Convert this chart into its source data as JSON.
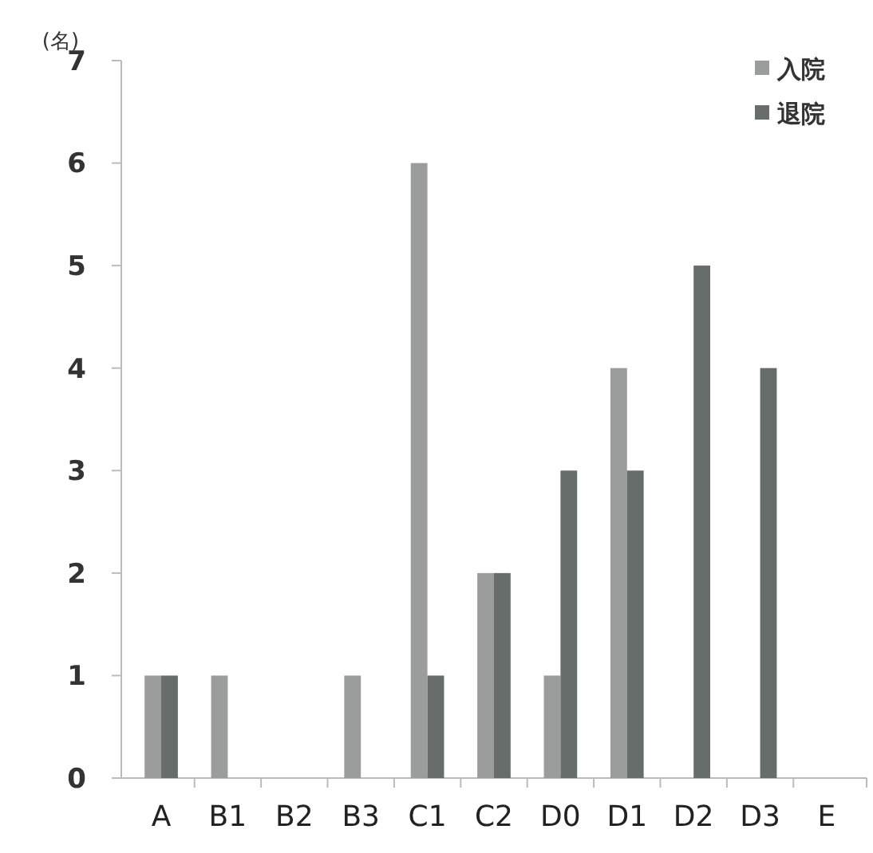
{
  "chart_data": {
    "type": "bar",
    "ylabel": "(名)",
    "categories": [
      "A",
      "B1",
      "B2",
      "B3",
      "C1",
      "C2",
      "D0",
      "D1",
      "D2",
      "D3",
      "E"
    ],
    "series": [
      {
        "name": "入院",
        "color": "#9a9d9b",
        "values": [
          1,
          1,
          0,
          1,
          6,
          2,
          1,
          4,
          0,
          0,
          0
        ]
      },
      {
        "name": "退院",
        "color": "#676d6a",
        "values": [
          1,
          0,
          0,
          0,
          1,
          2,
          3,
          3,
          5,
          4,
          0
        ]
      }
    ],
    "ylim": [
      0,
      7
    ],
    "yticks": [
      0,
      1,
      2,
      3,
      4,
      5,
      6,
      7
    ],
    "grid": false,
    "legend": "top right"
  }
}
